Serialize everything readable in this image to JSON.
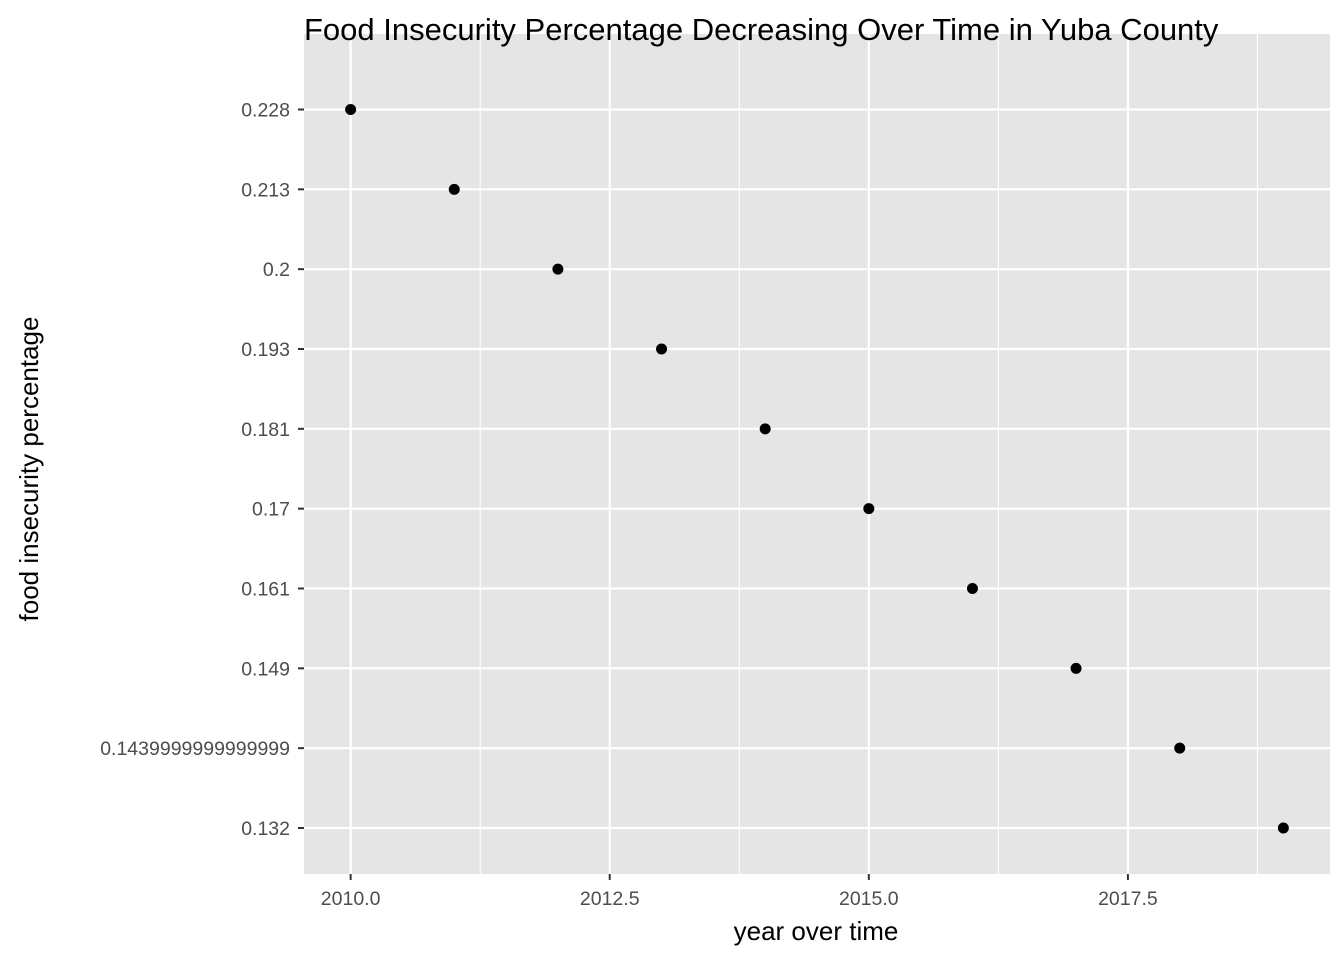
{
  "chart_data": {
    "type": "scatter",
    "title": "Food Insecurity Percentage Decreasing Over Time in Yuba County",
    "xlabel": "year over time",
    "ylabel": "food insecurity percentage",
    "x_ticks": [
      "2010.0",
      "2012.5",
      "2015.0",
      "2017.5"
    ],
    "x_tick_values": [
      2010,
      2012.5,
      2015,
      2017.5
    ],
    "xlim": [
      2009.55,
      2019.45
    ],
    "y_axis_type": "categorical",
    "y_categories": [
      "0.132",
      "0.1439999999999999",
      "0.149",
      "0.161",
      "0.17",
      "0.181",
      "0.193",
      "0.2",
      "0.213",
      "0.228"
    ],
    "points": [
      {
        "x": 2010,
        "y": "0.228"
      },
      {
        "x": 2011,
        "y": "0.213"
      },
      {
        "x": 2012,
        "y": "0.2"
      },
      {
        "x": 2013,
        "y": "0.193"
      },
      {
        "x": 2014,
        "y": "0.181"
      },
      {
        "x": 2015,
        "y": "0.17"
      },
      {
        "x": 2016,
        "y": "0.161"
      },
      {
        "x": 2017,
        "y": "0.149"
      },
      {
        "x": 2018,
        "y": "0.1439999999999999"
      },
      {
        "x": 2019,
        "y": "0.132"
      }
    ],
    "grid": true,
    "legend": "none",
    "colors": {
      "panel_background": "#e5e5e5",
      "grid": "#ffffff",
      "point": "#000000",
      "tick_label": "#4d4d4d",
      "tick_mark": "#333333"
    }
  }
}
